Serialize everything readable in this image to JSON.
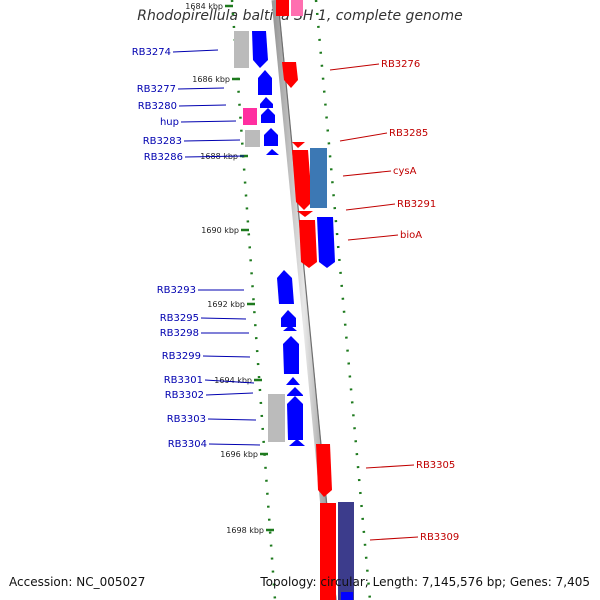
{
  "title": "Rhodopirellula baltica SH 1, complete genome",
  "accession_text": "Accession: NC_005027",
  "topology_text": "Topology: circular; Length: 7,145,576 bp; Genes: 7,405",
  "colors": {
    "forward": "#ff0000",
    "reverse": "#0000ff",
    "pink": "#ff2fa0",
    "gray": "#bbbbbb",
    "steel": "#3c78b4",
    "navy": "#3c3c8c",
    "left_label": "#0000b0",
    "right_label": "#c00000",
    "tick": "#1e7a1e"
  },
  "scale_labels": [
    "1684 kbp",
    "1686 kbp",
    "1688 kbp",
    "1690 kbp",
    "1692 kbp",
    "1694 kbp",
    "1696 kbp",
    "1698 kbp"
  ],
  "left_genes": [
    "RB3274",
    "RB3277",
    "RB3280",
    "hup",
    "RB3283",
    "RB3286",
    "RB3293",
    "RB3295",
    "RB3298",
    "RB3299",
    "RB3301",
    "RB3302",
    "RB3303",
    "RB3304"
  ],
  "right_genes": [
    "RB3276",
    "RB3285",
    "cysA",
    "RB3291",
    "bioA",
    "RB3305",
    "RB3309"
  ]
}
